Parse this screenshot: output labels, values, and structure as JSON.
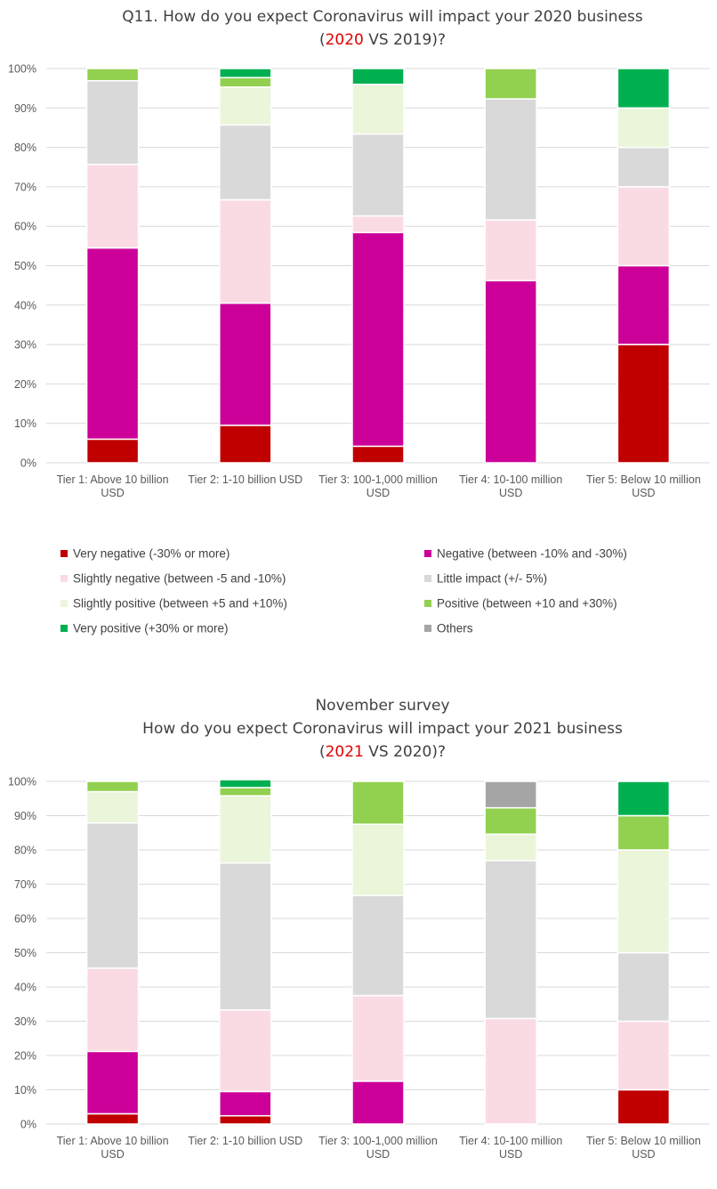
{
  "legend": [
    {
      "key": "very_negative",
      "label": "Very negative (-30% or more)",
      "color": "#c00000"
    },
    {
      "key": "negative",
      "label": "Negative (between -10% and -30%)",
      "color": "#cc0099"
    },
    {
      "key": "slightly_negative",
      "label": "Slightly negative (between -5 and -10%)",
      "color": "#fadbe3"
    },
    {
      "key": "little_impact",
      "label": "Little impact (+/- 5%)",
      "color": "#d9d9d9"
    },
    {
      "key": "slightly_positive",
      "label": "Slightly positive (between +5 and +10%)",
      "color": "#ebf5d9"
    },
    {
      "key": "positive",
      "label": "Positive (between +10 and +30%)",
      "color": "#92d050"
    },
    {
      "key": "very_positive",
      "label": "Very positive (+30% or more)",
      "color": "#00b050"
    },
    {
      "key": "others",
      "label": "Others",
      "color": "#a5a5a5"
    }
  ],
  "chart_data": [
    {
      "type": "bar",
      "stacked": true,
      "title_lines": [
        "Q11. How do you expect Coronavirus will impact your 2020 business",
        "(2020 VS 2019)?"
      ],
      "title_highlight": "2020",
      "categories": [
        [
          "Tier 1: Above 10 billion",
          "USD"
        ],
        [
          "Tier 2: 1-10 billion USD"
        ],
        [
          "Tier 3: 100-1,000 million",
          "USD"
        ],
        [
          "Tier 4: 10-100 million",
          "USD"
        ],
        [
          "Tier 5: Below 10 million",
          "USD"
        ]
      ],
      "yticks": [
        "0%",
        "10%",
        "20%",
        "30%",
        "40%",
        "50%",
        "60%",
        "70%",
        "80%",
        "90%",
        "100%"
      ],
      "ylim": [
        0,
        100
      ],
      "series": [
        {
          "name": "Very negative (-30% or more)",
          "values": [
            6,
            9.5,
            4.2,
            0,
            30
          ]
        },
        {
          "name": "Negative (between -10% and -30%)",
          "values": [
            48.5,
            31,
            54.2,
            46.2,
            20
          ]
        },
        {
          "name": "Slightly negative (between -5 and -10%)",
          "values": [
            21.2,
            26.2,
            4.2,
            15.4,
            20
          ]
        },
        {
          "name": "Little impact (+/- 5%)",
          "values": [
            21.2,
            19,
            20.8,
            30.7,
            10
          ]
        },
        {
          "name": "Slightly positive (between +5 and +10%)",
          "values": [
            0,
            9.6,
            12.6,
            0,
            10
          ]
        },
        {
          "name": "Positive (between +10 and +30%)",
          "values": [
            3.1,
            2.4,
            0,
            7.7,
            0
          ]
        },
        {
          "name": "Very positive (+30% or more)",
          "values": [
            0,
            2.3,
            4,
            0,
            10
          ]
        },
        {
          "name": "Others",
          "values": [
            0,
            0,
            0,
            0,
            0
          ]
        }
      ],
      "grid": true,
      "legend_position": "bottom"
    },
    {
      "type": "bar",
      "stacked": true,
      "title_lines": [
        "November survey",
        "How do you expect Coronavirus will impact your 2021 business",
        "(2021 VS 2020)?"
      ],
      "title_highlight": "2021",
      "categories": [
        [
          "Tier 1: Above 10 billion",
          "USD"
        ],
        [
          "Tier 2: 1-10 billion USD"
        ],
        [
          "Tier 3: 100-1,000 million",
          "USD"
        ],
        [
          "Tier 4: 10-100 million",
          "USD"
        ],
        [
          "Tier 5: Below 10 million",
          "USD"
        ]
      ],
      "yticks": [
        "0%",
        "10%",
        "20%",
        "30%",
        "40%",
        "50%",
        "60%",
        "70%",
        "80%",
        "90%",
        "100%"
      ],
      "ylim": [
        0,
        100
      ],
      "series": [
        {
          "name": "Very negative (-30% or more)",
          "values": [
            3,
            2.4,
            0,
            0,
            10
          ]
        },
        {
          "name": "Negative (between -10% and -30%)",
          "values": [
            18.2,
            7.1,
            12.5,
            0,
            0
          ]
        },
        {
          "name": "Slightly negative (between -5 and -10%)",
          "values": [
            24.3,
            23.8,
            25,
            30.8,
            20
          ]
        },
        {
          "name": "Little impact (+/- 5%)",
          "values": [
            42.4,
            42.9,
            29.2,
            46.1,
            20
          ]
        },
        {
          "name": "Slightly positive (between +5 and +10%)",
          "values": [
            9.1,
            19.6,
            20.8,
            7.7,
            30
          ]
        },
        {
          "name": "Positive (between +10 and +30%)",
          "values": [
            3,
            2.4,
            12.5,
            7.7,
            10
          ]
        },
        {
          "name": "Very positive (+30% or more)",
          "values": [
            0,
            2.3,
            0,
            0,
            10
          ]
        },
        {
          "name": "Others",
          "values": [
            0,
            0,
            0,
            7.7,
            0
          ]
        }
      ],
      "grid": true
    }
  ]
}
